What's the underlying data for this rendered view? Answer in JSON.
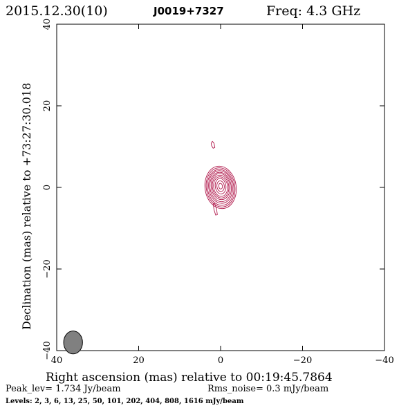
{
  "header": {
    "date_epoch": "2015.12.30(10)",
    "source": "J0019+7327",
    "freq": "Freq: 4.3 GHz"
  },
  "footer": {
    "peak": "Peak_lev=  1.734 Jy/beam",
    "rms": "Rms_noise=  0.3 mJy/beam",
    "levels": "Levels:   2,   3,   6,  13,  25,  50, 101, 202, 404, 808, 1616 mJy/beam"
  },
  "colors": {
    "contour": "#b0174a",
    "accent_text": "#b0174a",
    "beam_fill": "#808080"
  },
  "chart_data": {
    "type": "contour",
    "xlabel": "Right ascension (mas) relative to 00:19:45.7864",
    "ylabel": "Declination (mas) relative to +73:27:30.018",
    "xlim": [
      40,
      -40
    ],
    "ylim": [
      -40,
      40
    ],
    "xticks": [
      40,
      20,
      0,
      -20,
      -40
    ],
    "yticks": [
      -40,
      -20,
      0,
      20,
      40
    ],
    "xtick_labels": [
      "40",
      "20",
      "0",
      "−20",
      "−40"
    ],
    "ytick_labels": [
      "−40",
      "−20",
      "0",
      "20",
      "40"
    ],
    "levels_mJy": [
      2,
      3,
      6,
      13,
      25,
      50,
      101,
      202,
      404,
      808,
      1616
    ],
    "core": {
      "x": 0,
      "y": 0.3
    },
    "contours": [
      {
        "level": 2,
        "cx": 0.0,
        "cy": 0.0,
        "rx": 3.8,
        "ry": 5.2,
        "rot": -8
      },
      {
        "level": 3,
        "cx": 0.0,
        "cy": 0.0,
        "rx": 3.5,
        "ry": 4.8,
        "rot": -8
      },
      {
        "level": 6,
        "cx": 0.0,
        "cy": 0.0,
        "rx": 3.2,
        "ry": 4.4,
        "rot": -8
      },
      {
        "level": 13,
        "cx": 0.0,
        "cy": 0.1,
        "rx": 2.9,
        "ry": 4.0,
        "rot": -8
      },
      {
        "level": 25,
        "cx": 0.0,
        "cy": 0.1,
        "rx": 2.6,
        "ry": 3.6,
        "rot": -8
      },
      {
        "level": 50,
        "cx": 0.0,
        "cy": 0.2,
        "rx": 2.3,
        "ry": 3.2,
        "rot": -8
      },
      {
        "level": 101,
        "cx": 0.0,
        "cy": 0.2,
        "rx": 2.0,
        "ry": 2.8,
        "rot": -8
      },
      {
        "level": 202,
        "cx": 0.0,
        "cy": 0.2,
        "rx": 1.7,
        "ry": 2.4,
        "rot": -8
      },
      {
        "level": 404,
        "cx": 0.0,
        "cy": 0.3,
        "rx": 1.3,
        "ry": 1.9,
        "rot": -8
      },
      {
        "level": 808,
        "cx": 0.0,
        "cy": 0.3,
        "rx": 0.9,
        "ry": 1.3,
        "rot": -8
      },
      {
        "level": 1616,
        "cx": 0.0,
        "cy": 0.3,
        "rx": 0.45,
        "ry": 0.7,
        "rot": -8
      }
    ],
    "extensions": [
      {
        "label": "southern-extension",
        "points": [
          [
            1.8,
            -4.0
          ],
          [
            1.6,
            -5.5
          ],
          [
            1.2,
            -6.8
          ],
          [
            0.8,
            -6.7
          ],
          [
            1.0,
            -5.2
          ],
          [
            1.4,
            -4.0
          ]
        ]
      },
      {
        "label": "northern-knot",
        "points": [
          [
            2.3,
            10.8
          ],
          [
            2.0,
            11.3
          ],
          [
            1.6,
            10.8
          ],
          [
            1.4,
            9.8
          ],
          [
            1.8,
            9.6
          ],
          [
            2.2,
            10.2
          ]
        ]
      }
    ],
    "beam": {
      "x": 36.0,
      "y": -38.0,
      "major": 2.8,
      "minor": 2.3,
      "pa": 0
    },
    "grid": false
  }
}
